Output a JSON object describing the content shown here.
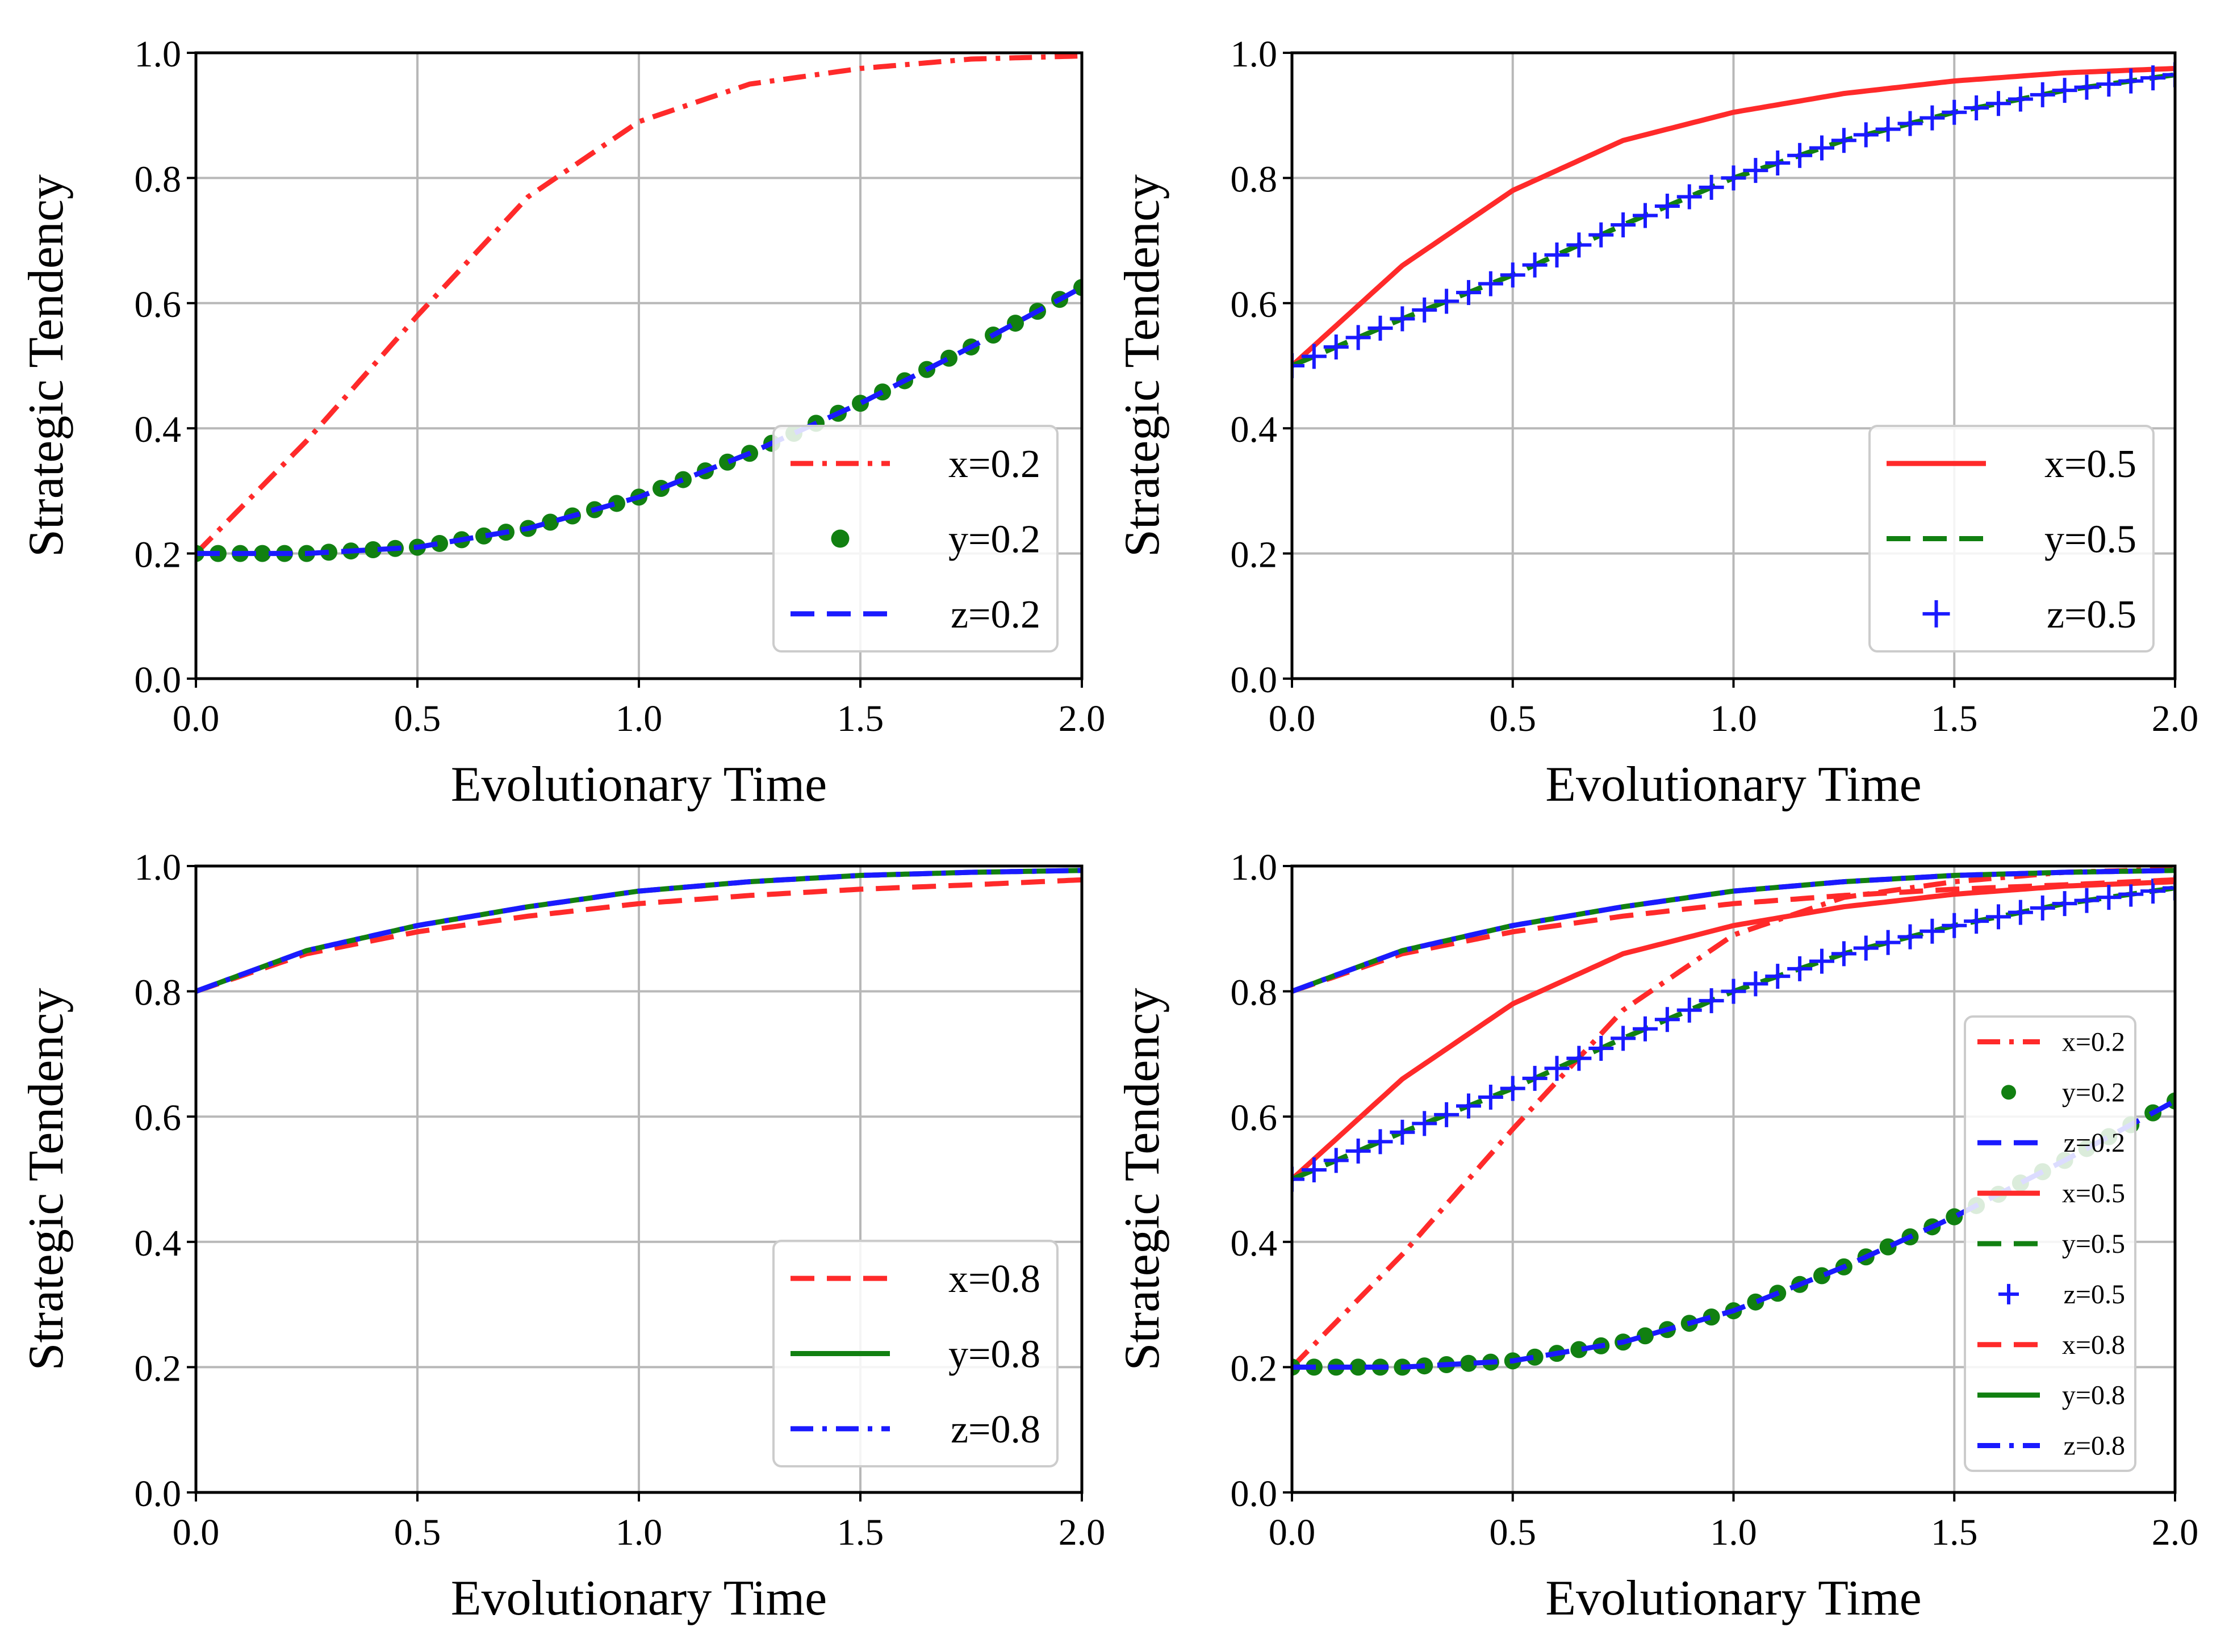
{
  "chart_data": [
    {
      "type": "line",
      "xlabel": "Evolutionary Time",
      "ylabel": "Strategic Tendency",
      "xlim": [
        0.0,
        2.0
      ],
      "ylim": [
        0.0,
        1.0
      ],
      "xticks": [
        "0.0",
        "0.5",
        "1.0",
        "1.5",
        "2.0"
      ],
      "yticks": [
        "0.0",
        "0.2",
        "0.4",
        "0.6",
        "0.8",
        "1.0"
      ],
      "grid": true,
      "legend_position": "lower-right",
      "series": [
        {
          "name": "x=0.2",
          "style": "dashdot",
          "color": "#ff2a2a",
          "x": [
            0,
            0.25,
            0.5,
            0.75,
            1.0,
            1.25,
            1.5,
            1.75,
            2.0
          ],
          "y": [
            0.2,
            0.38,
            0.58,
            0.77,
            0.89,
            0.95,
            0.975,
            0.99,
            0.995
          ]
        },
        {
          "name": "y=0.2",
          "style": "dots",
          "color": "#118011",
          "x": [
            0,
            0.25,
            0.5,
            0.75,
            1.0,
            1.25,
            1.5,
            1.75,
            2.0
          ],
          "y": [
            0.2,
            0.2,
            0.21,
            0.24,
            0.29,
            0.36,
            0.44,
            0.53,
            0.625
          ]
        },
        {
          "name": "z=0.2",
          "style": "dashed",
          "color": "#1a1aff",
          "x": [
            0,
            0.25,
            0.5,
            0.75,
            1.0,
            1.25,
            1.5,
            1.75,
            2.0
          ],
          "y": [
            0.2,
            0.2,
            0.21,
            0.24,
            0.29,
            0.36,
            0.44,
            0.53,
            0.625
          ]
        }
      ]
    },
    {
      "type": "line",
      "xlabel": "Evolutionary Time",
      "ylabel": "Strategic Tendency",
      "xlim": [
        0.0,
        2.0
      ],
      "ylim": [
        0.0,
        1.0
      ],
      "xticks": [
        "0.0",
        "0.5",
        "1.0",
        "1.5",
        "2.0"
      ],
      "yticks": [
        "0.0",
        "0.2",
        "0.4",
        "0.6",
        "0.8",
        "1.0"
      ],
      "grid": true,
      "legend_position": "lower-right",
      "series": [
        {
          "name": "x=0.5",
          "style": "solid",
          "color": "#ff2a2a",
          "x": [
            0,
            0.25,
            0.5,
            0.75,
            1.0,
            1.25,
            1.5,
            1.75,
            2.0
          ],
          "y": [
            0.5,
            0.66,
            0.78,
            0.86,
            0.905,
            0.935,
            0.955,
            0.968,
            0.975
          ]
        },
        {
          "name": "y=0.5",
          "style": "dashed",
          "color": "#118011",
          "x": [
            0,
            0.25,
            0.5,
            0.75,
            1.0,
            1.25,
            1.5,
            1.75,
            2.0
          ],
          "y": [
            0.5,
            0.575,
            0.645,
            0.725,
            0.8,
            0.86,
            0.905,
            0.94,
            0.965
          ]
        },
        {
          "name": "z=0.5",
          "style": "plus",
          "color": "#1a1aff",
          "x": [
            0,
            0.25,
            0.5,
            0.75,
            1.0,
            1.25,
            1.5,
            1.75,
            2.0
          ],
          "y": [
            0.5,
            0.575,
            0.645,
            0.725,
            0.8,
            0.86,
            0.905,
            0.94,
            0.965
          ]
        }
      ]
    },
    {
      "type": "line",
      "xlabel": "Evolutionary Time",
      "ylabel": "Strategic Tendency",
      "xlim": [
        0.0,
        2.0
      ],
      "ylim": [
        0.0,
        1.0
      ],
      "xticks": [
        "0.0",
        "0.5",
        "1.0",
        "1.5",
        "2.0"
      ],
      "yticks": [
        "0.0",
        "0.2",
        "0.4",
        "0.6",
        "0.8",
        "1.0"
      ],
      "grid": true,
      "legend_position": "lower-right",
      "series": [
        {
          "name": "x=0.8",
          "style": "dashed",
          "color": "#ff2a2a",
          "x": [
            0,
            0.25,
            0.5,
            0.75,
            1.0,
            1.25,
            1.5,
            1.75,
            2.0
          ],
          "y": [
            0.8,
            0.86,
            0.895,
            0.92,
            0.94,
            0.953,
            0.963,
            0.97,
            0.978
          ]
        },
        {
          "name": "y=0.8",
          "style": "solid",
          "color": "#118011",
          "x": [
            0,
            0.25,
            0.5,
            0.75,
            1.0,
            1.25,
            1.5,
            1.75,
            2.0
          ],
          "y": [
            0.8,
            0.865,
            0.905,
            0.935,
            0.96,
            0.975,
            0.985,
            0.99,
            0.993
          ]
        },
        {
          "name": "z=0.8",
          "style": "dashdot",
          "color": "#1a1aff",
          "x": [
            0,
            0.25,
            0.5,
            0.75,
            1.0,
            1.25,
            1.5,
            1.75,
            2.0
          ],
          "y": [
            0.8,
            0.865,
            0.905,
            0.935,
            0.96,
            0.975,
            0.985,
            0.99,
            0.993
          ]
        }
      ]
    },
    {
      "type": "line",
      "xlabel": "Evolutionary Time",
      "ylabel": "Strategic Tendency",
      "xlim": [
        0.0,
        2.0
      ],
      "ylim": [
        0.0,
        1.0
      ],
      "xticks": [
        "0.0",
        "0.5",
        "1.0",
        "1.5",
        "2.0"
      ],
      "yticks": [
        "0.0",
        "0.2",
        "0.4",
        "0.6",
        "0.8",
        "1.0"
      ],
      "grid": true,
      "legend_position": "lower-right",
      "series": [
        {
          "name": "x=0.2",
          "style": "dashdot",
          "color": "#ff2a2a",
          "x": [
            0,
            0.25,
            0.5,
            0.75,
            1.0,
            1.25,
            1.5,
            1.75,
            2.0
          ],
          "y": [
            0.2,
            0.38,
            0.58,
            0.77,
            0.89,
            0.95,
            0.975,
            0.99,
            0.995
          ]
        },
        {
          "name": "y=0.2",
          "style": "dots",
          "color": "#118011",
          "x": [
            0,
            0.25,
            0.5,
            0.75,
            1.0,
            1.25,
            1.5,
            1.75,
            2.0
          ],
          "y": [
            0.2,
            0.2,
            0.21,
            0.24,
            0.29,
            0.36,
            0.44,
            0.53,
            0.625
          ]
        },
        {
          "name": "z=0.2",
          "style": "dashed",
          "color": "#1a1aff",
          "x": [
            0,
            0.25,
            0.5,
            0.75,
            1.0,
            1.25,
            1.5,
            1.75,
            2.0
          ],
          "y": [
            0.2,
            0.2,
            0.21,
            0.24,
            0.29,
            0.36,
            0.44,
            0.53,
            0.625
          ]
        },
        {
          "name": "x=0.5",
          "style": "solid",
          "color": "#ff2a2a",
          "x": [
            0,
            0.25,
            0.5,
            0.75,
            1.0,
            1.25,
            1.5,
            1.75,
            2.0
          ],
          "y": [
            0.5,
            0.66,
            0.78,
            0.86,
            0.905,
            0.935,
            0.955,
            0.968,
            0.975
          ]
        },
        {
          "name": "y=0.5",
          "style": "dashed",
          "color": "#118011",
          "x": [
            0,
            0.25,
            0.5,
            0.75,
            1.0,
            1.25,
            1.5,
            1.75,
            2.0
          ],
          "y": [
            0.5,
            0.575,
            0.645,
            0.725,
            0.8,
            0.86,
            0.905,
            0.94,
            0.965
          ]
        },
        {
          "name": "z=0.5",
          "style": "plus",
          "color": "#1a1aff",
          "x": [
            0,
            0.25,
            0.5,
            0.75,
            1.0,
            1.25,
            1.5,
            1.75,
            2.0
          ],
          "y": [
            0.5,
            0.575,
            0.645,
            0.725,
            0.8,
            0.86,
            0.905,
            0.94,
            0.965
          ]
        },
        {
          "name": "x=0.8",
          "style": "dashed",
          "color": "#ff2a2a",
          "x": [
            0,
            0.25,
            0.5,
            0.75,
            1.0,
            1.25,
            1.5,
            1.75,
            2.0
          ],
          "y": [
            0.8,
            0.86,
            0.895,
            0.92,
            0.94,
            0.953,
            0.963,
            0.97,
            0.978
          ]
        },
        {
          "name": "y=0.8",
          "style": "solid",
          "color": "#118011",
          "x": [
            0,
            0.25,
            0.5,
            0.75,
            1.0,
            1.25,
            1.5,
            1.75,
            2.0
          ],
          "y": [
            0.8,
            0.865,
            0.905,
            0.935,
            0.96,
            0.975,
            0.985,
            0.99,
            0.993
          ]
        },
        {
          "name": "z=0.8",
          "style": "dashdot",
          "color": "#1a1aff",
          "x": [
            0,
            0.25,
            0.5,
            0.75,
            1.0,
            1.25,
            1.5,
            1.75,
            2.0
          ],
          "y": [
            0.8,
            0.865,
            0.905,
            0.935,
            0.96,
            0.975,
            0.985,
            0.99,
            0.993
          ]
        }
      ]
    }
  ]
}
